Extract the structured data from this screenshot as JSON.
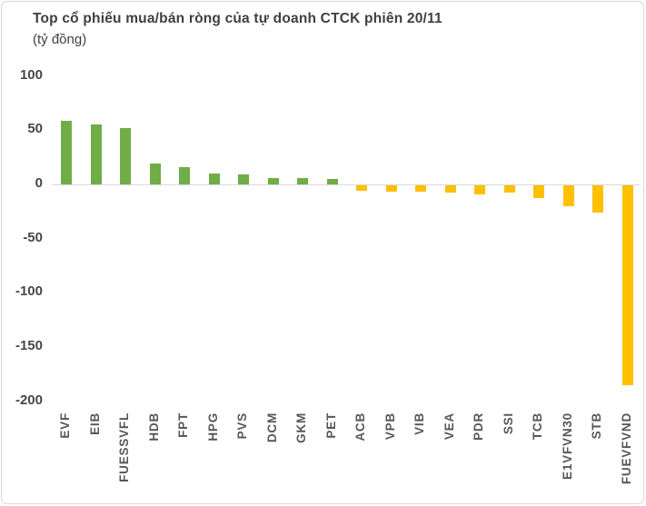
{
  "chart_data": {
    "type": "bar",
    "title": "Top cổ phiếu mua/bán ròng của tự doanh CTCK phiên 20/11",
    "subtitle": "(tỷ đồng)",
    "unit": "tỷ đồng",
    "categories": [
      "EVF",
      "EIB",
      "FUESSVFL",
      "HDB",
      "FPT",
      "HPG",
      "PVS",
      "DCM",
      "GKM",
      "PET",
      "ACB",
      "VPB",
      "VIB",
      "VEA",
      "PDR",
      "SSI",
      "TCB",
      "E1VFVN30",
      "STB",
      "FUEVFVND"
    ],
    "values": [
      59,
      55,
      52,
      19,
      16,
      10,
      9,
      6,
      6,
      5,
      -5,
      -6,
      -6,
      -7,
      -8,
      -7,
      -12,
      -19,
      -25,
      -184
    ],
    "ylim": [
      -200,
      100
    ],
    "yticks": [
      100,
      50,
      0,
      -50,
      -100,
      -150,
      -200
    ],
    "grid": false,
    "legend": false,
    "xlabel": "",
    "ylabel": "tỷ đồng"
  },
  "colors": {
    "positive_bar": "#70AD47",
    "negative_bar": "#FFC000",
    "axis_line": "#D9D9D9",
    "frame_border": "#D9D9D9",
    "title_text": "#3F3F3F",
    "y_tick_text": "#474747",
    "x_label_text": "#575757",
    "background": "#FFFFFF"
  }
}
